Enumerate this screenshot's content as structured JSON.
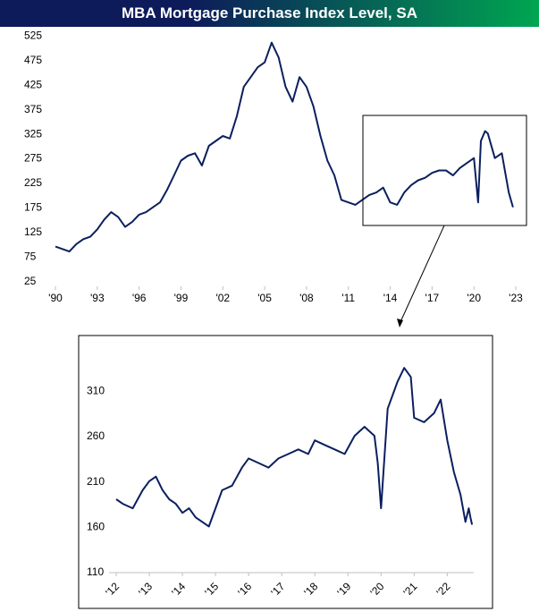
{
  "title": "MBA Mortgage Purchase Index Level, SA",
  "colors": {
    "title_gradient_start": "#0d1b5a",
    "title_gradient_end": "#00a651",
    "series_line": "#0b1f5e",
    "zoom_box": "#000000"
  },
  "chart_data": [
    {
      "type": "line",
      "title": "",
      "xlabel": "",
      "ylabel": "",
      "xlim": [
        1990,
        2023
      ],
      "ylim": [
        25,
        535
      ],
      "grid": false,
      "legend": "none",
      "yticks": [
        25,
        75,
        125,
        175,
        225,
        275,
        325,
        375,
        425,
        475,
        525
      ],
      "xtick_labels": [
        "'90",
        "'93",
        "'96",
        "'99",
        "'02",
        "'05",
        "'08",
        "'11",
        "'14",
        "'17",
        "'20",
        "'23"
      ],
      "xtick_years": [
        1990,
        1993,
        1996,
        1999,
        2002,
        2005,
        2008,
        2011,
        2014,
        2017,
        2020,
        2023
      ],
      "series": [
        {
          "x": [
            1990.0,
            1990.5,
            1991.0,
            1991.5,
            1992.0,
            1992.5,
            1993.0,
            1993.5,
            1994.0,
            1994.5,
            1995.0,
            1995.5,
            1996.0,
            1996.5,
            1997.0,
            1997.5,
            1998.0,
            1998.5,
            1999.0,
            1999.5,
            2000.0,
            2000.5,
            2001.0,
            2001.5,
            2002.0,
            2002.5,
            2003.0,
            2003.5,
            2004.0,
            2004.5,
            2005.0,
            2005.5,
            2006.0,
            2006.5,
            2007.0,
            2007.5,
            2008.0,
            2008.5,
            2009.0,
            2009.5,
            2010.0,
            2010.5,
            2011.0,
            2011.5,
            2012.0,
            2012.5,
            2013.0,
            2013.5,
            2014.0,
            2014.5,
            2015.0,
            2015.5,
            2016.0,
            2016.5,
            2017.0,
            2017.5,
            2018.0,
            2018.5,
            2019.0,
            2019.5,
            2020.0,
            2020.3,
            2020.5,
            2020.8,
            2021.0,
            2021.5,
            2022.0,
            2022.5,
            2022.8
          ],
          "y": [
            95,
            90,
            85,
            100,
            110,
            115,
            130,
            150,
            165,
            155,
            135,
            145,
            160,
            165,
            175,
            185,
            210,
            240,
            270,
            280,
            285,
            260,
            300,
            310,
            320,
            315,
            360,
            420,
            440,
            460,
            470,
            510,
            480,
            420,
            390,
            440,
            420,
            380,
            320,
            270,
            240,
            190,
            185,
            180,
            190,
            200,
            205,
            215,
            185,
            180,
            205,
            220,
            230,
            235,
            245,
            250,
            250,
            240,
            255,
            265,
            275,
            185,
            310,
            330,
            325,
            275,
            285,
            205,
            175
          ]
        }
      ]
    },
    {
      "type": "line",
      "title": "",
      "xlabel": "",
      "ylabel": "",
      "xlim": [
        2012,
        2022.8
      ],
      "ylim": [
        110,
        350
      ],
      "grid": false,
      "legend": "none",
      "yticks": [
        110,
        160,
        210,
        260,
        310
      ],
      "xtick_labels": [
        "'12",
        "'13",
        "'14",
        "'15",
        "'16",
        "'17",
        "'18",
        "'19",
        "'20",
        "'21",
        "'22"
      ],
      "xtick_years": [
        2012,
        2013,
        2014,
        2015,
        2016,
        2017,
        2018,
        2019,
        2020,
        2021,
        2022
      ],
      "series": [
        {
          "x": [
            2012.0,
            2012.2,
            2012.5,
            2012.8,
            2013.0,
            2013.2,
            2013.4,
            2013.6,
            2013.8,
            2014.0,
            2014.2,
            2014.4,
            2014.6,
            2014.8,
            2015.0,
            2015.2,
            2015.5,
            2015.8,
            2016.0,
            2016.3,
            2016.6,
            2016.9,
            2017.2,
            2017.5,
            2017.8,
            2018.0,
            2018.3,
            2018.6,
            2018.9,
            2019.2,
            2019.5,
            2019.8,
            2019.9,
            2020.0,
            2020.2,
            2020.5,
            2020.7,
            2020.9,
            2021.0,
            2021.3,
            2021.6,
            2021.8,
            2022.0,
            2022.2,
            2022.4,
            2022.55,
            2022.65,
            2022.7,
            2022.75
          ],
          "y": [
            190,
            185,
            180,
            200,
            210,
            215,
            200,
            190,
            185,
            175,
            180,
            170,
            165,
            160,
            180,
            200,
            205,
            225,
            235,
            230,
            225,
            235,
            240,
            245,
            240,
            255,
            250,
            245,
            240,
            260,
            270,
            260,
            230,
            180,
            290,
            320,
            335,
            325,
            280,
            275,
            285,
            300,
            255,
            220,
            195,
            165,
            180,
            170,
            162
          ]
        }
      ]
    }
  ]
}
